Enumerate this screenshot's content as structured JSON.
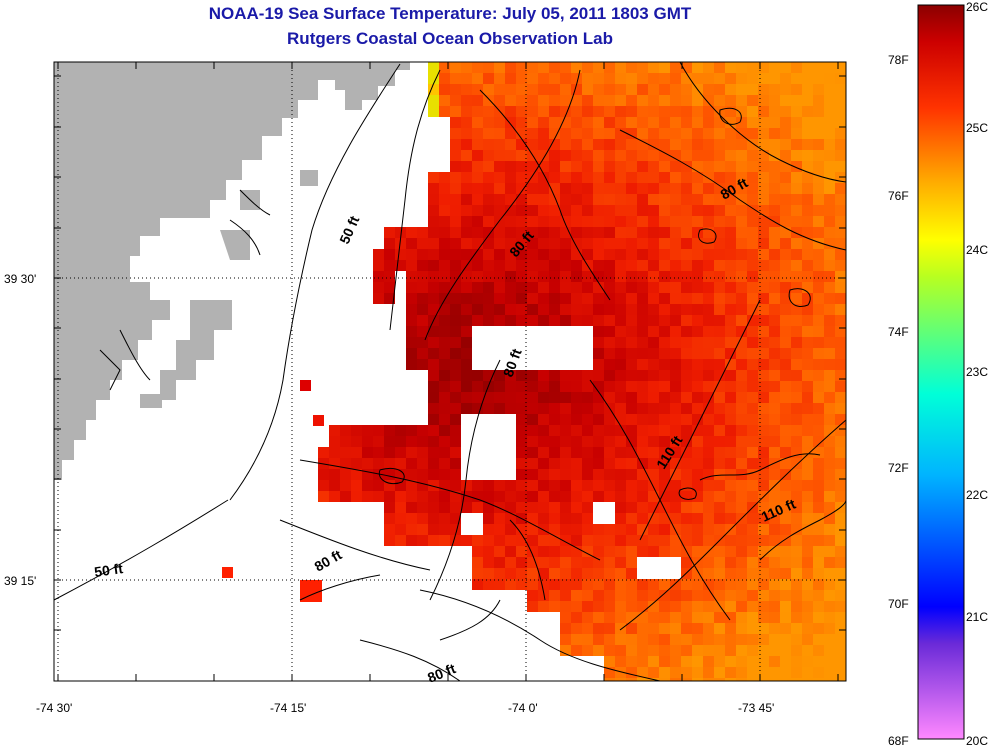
{
  "title": "NOAA-19 Sea Surface Temperature:  July 05, 2011 1803 GMT",
  "subtitle": "Rutgers Coastal Ocean Observation Lab",
  "axes": {
    "lon_ticks": [
      "-74 30'",
      "-74 15'",
      "-74 0'",
      "-73 45'"
    ],
    "lat_ticks": [
      "39 30'",
      "39 15'"
    ]
  },
  "contour_labels": [
    "50 ft",
    "50 ft",
    "80 ft",
    "80 ft",
    "80 ft",
    "80 ft",
    "80 ft",
    "110 ft",
    "110 ft"
  ],
  "colorbar": {
    "celsius": [
      "26C",
      "25C",
      "24C",
      "23C",
      "22C",
      "21C",
      "20C"
    ],
    "fahrenheit": [
      "78F",
      "76F",
      "74F",
      "72F",
      "70F",
      "68F"
    ],
    "colors": [
      "#ff33ff",
      "#0000ff",
      "#00ffff",
      "#ffff00",
      "#ff8800",
      "#ff1a00",
      "#8b0000"
    ]
  },
  "chart_data": {
    "type": "heatmap",
    "title": "NOAA-19 Sea Surface Temperature:  July 05, 2011 1803 GMT",
    "subtitle": "Rutgers Coastal Ocean Observation Lab",
    "units": [
      "C",
      "F"
    ],
    "value_range_c": [
      20,
      26
    ],
    "value_range_f": [
      68,
      78.8
    ],
    "x_ticks": [
      "-74 30'",
      "-74 15'",
      "-74 0'",
      "-73 45'"
    ],
    "y_ticks": [
      "39 30'",
      "39 15'"
    ],
    "observed_range_c": [
      24,
      25.8
    ],
    "land_color": "#b2b2b2",
    "nodata_color": "#ffffff"
  }
}
